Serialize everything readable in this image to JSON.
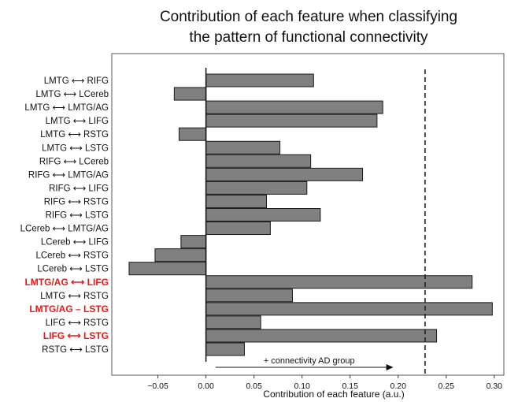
{
  "chart_data": {
    "type": "bar",
    "orientation": "horizontal",
    "title_lines": [
      "Contribution of each feature when classifying",
      "the pattern of functional connectivity"
    ],
    "xlabel": "Contribution of each feature (a.u.)",
    "ylabel": "",
    "xlim": [
      -0.098,
      0.31
    ],
    "xticks": [
      -0.05,
      0.0,
      0.05,
      0.1,
      0.15,
      0.2,
      0.25,
      0.3
    ],
    "xtick_labels": [
      "−0.05",
      "0.00",
      "0.05",
      "0.10",
      "0.15",
      "0.20",
      "0.25",
      "0.30"
    ],
    "categories": [
      "LMTG ⟷ RIFG",
      "LMTG ⟷ LCereb",
      "LMTG ⟷ LMTG/AG",
      "LMTG ⟷ LIFG",
      "LMTG ⟷ RSTG",
      "LMTG ⟷ LSTG",
      "RIFG ⟷ LCereb",
      "RIFG ⟷ LMTG/AG",
      "RIFG ⟷ LIFG",
      "RIFG ⟷ RSTG",
      "RIFG ⟷ LSTG",
      "LCereb ⟷ LMTG/AG",
      "LCereb ⟷ LIFG",
      "LCereb ⟷ RSTG",
      "LCereb ⟷ LSTG",
      "LMTG/AG ⟷ LIFG",
      "LMTG ⟷ RSTG",
      "LMTG/AG – LSTG",
      "LIFG ⟷ RSTG",
      "LIFG ⟷ LSTG",
      "RSTG ⟷ LSTG"
    ],
    "values": [
      0.112,
      -0.033,
      0.184,
      0.178,
      -0.028,
      0.077,
      0.109,
      0.163,
      0.105,
      0.063,
      0.119,
      0.067,
      -0.026,
      -0.053,
      -0.08,
      0.277,
      0.09,
      0.298,
      0.057,
      0.24,
      0.04
    ],
    "highlighted": [
      "LMTG/AG ⟷ LIFG",
      "LMTG/AG – LSTG",
      "LIFG ⟷ LSTG"
    ],
    "reference_line_x": 0.228,
    "annotation": {
      "text": "+ connectivity AD group",
      "arrow_from": 0.01,
      "arrow_to": 0.195
    },
    "grid": false,
    "colors": {
      "bar": "#808080",
      "bar_edge": "#1a1a1a",
      "highlight_text": "#e21b1b"
    }
  }
}
